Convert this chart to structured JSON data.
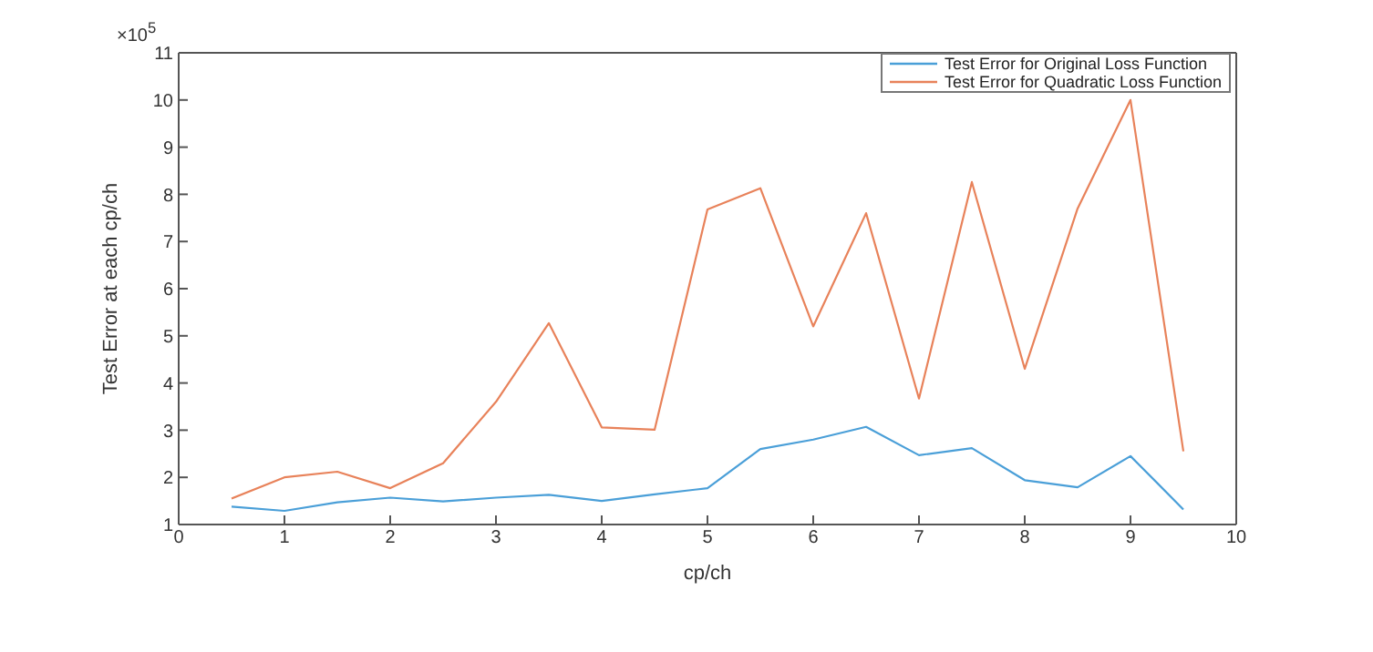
{
  "chart_data": {
    "type": "line",
    "xlabel": "cp/ch",
    "ylabel": "Test Error at each cp/ch",
    "annotations": [
      "×10$^{5}$"
    ],
    "x": [
      0.5,
      1,
      1.5,
      2,
      2.5,
      3,
      3.5,
      4,
      4.5,
      5,
      5.5,
      6,
      6.5,
      7,
      7.5,
      8,
      8.5,
      9,
      9.5
    ],
    "series": [
      {
        "name": "Test Error for Original Loss Function",
        "color": "#4a9fd8",
        "values": [
          1.38,
          1.29,
          1.47,
          1.57,
          1.49,
          1.57,
          1.63,
          1.5,
          1.64,
          1.77,
          2.6,
          2.8,
          3.07,
          2.47,
          2.62,
          1.94,
          1.79,
          2.45,
          1.32
        ]
      },
      {
        "name": "Test Error for Quadratic Loss Function",
        "color": "#e8825a",
        "values": [
          1.55,
          2.0,
          2.12,
          1.77,
          2.3,
          3.6,
          5.27,
          3.06,
          3.01,
          7.68,
          8.13,
          5.2,
          7.6,
          3.67,
          8.26,
          4.3,
          7.7,
          10.0,
          2.55
        ]
      }
    ],
    "xlim": [
      0,
      10
    ],
    "xticks": [
      0,
      1,
      2,
      3,
      4,
      5,
      6,
      7,
      8,
      9,
      10
    ],
    "ylim": [
      1,
      11
    ],
    "yticks": [
      1,
      2,
      3,
      4,
      5,
      6,
      7,
      8,
      9,
      10,
      11
    ],
    "grid": false,
    "legend": "top right",
    "marker": "none",
    "line_style": "solid"
  }
}
